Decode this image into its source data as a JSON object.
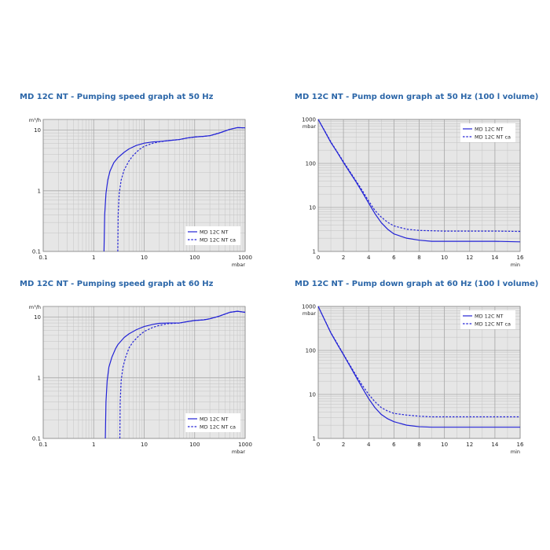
{
  "colors": {
    "line": "#2323d6",
    "plot_bg": "#e6e6e6",
    "grid": "#c4c4c4",
    "title": "#2b66a8"
  },
  "chart_data": [
    {
      "type": "line",
      "title": "MD 12C NT - Pumping speed graph at 50 Hz",
      "xscale": "log",
      "yscale": "log",
      "xlim": [
        0.1,
        1000
      ],
      "ylim": [
        0.1,
        15
      ],
      "xticks": [
        0.1,
        1,
        10,
        100,
        1000
      ],
      "xtick_labels": [
        "0.1",
        "1",
        "10",
        "100",
        "1000"
      ],
      "yticks": [
        0.1,
        1,
        10
      ],
      "ytick_labels": [
        "0.1",
        "1",
        "10"
      ],
      "xlabel": "mbar",
      "ylabel": "m³/h",
      "grid": true,
      "legend_position": "bottom-right",
      "series": [
        {
          "name": "MD 12C NT",
          "style": "solid",
          "x": [
            1.6,
            1.65,
            1.75,
            1.9,
            2.1,
            2.5,
            3,
            4,
            5,
            7,
            10,
            15,
            20,
            30,
            50,
            70,
            100,
            150,
            200,
            300,
            500,
            700,
            1000
          ],
          "y": [
            0.1,
            0.4,
            0.9,
            1.5,
            2.1,
            2.9,
            3.5,
            4.3,
            4.9,
            5.6,
            6.1,
            6.4,
            6.5,
            6.7,
            7.0,
            7.4,
            7.7,
            7.9,
            8.1,
            8.9,
            10.3,
            11.0,
            10.9
          ]
        },
        {
          "name": "MD 12C NT ca",
          "style": "dashed",
          "x": [
            3.0,
            3.05,
            3.2,
            3.5,
            4,
            5,
            6,
            8,
            10,
            15,
            20,
            30,
            50,
            70,
            100,
            150,
            200,
            300,
            500,
            700,
            1000
          ],
          "y": [
            0.1,
            0.4,
            0.9,
            1.5,
            2.2,
            3.1,
            3.8,
            4.8,
            5.4,
            6.1,
            6.4,
            6.7,
            7.0,
            7.4,
            7.7,
            7.9,
            8.1,
            8.9,
            10.3,
            11.0,
            10.9
          ]
        }
      ]
    },
    {
      "type": "line",
      "title": "MD 12C NT - Pump down graph at 50 Hz (100 l volume)",
      "xscale": "linear",
      "yscale": "log",
      "xlim": [
        0,
        16
      ],
      "ylim": [
        1,
        1000
      ],
      "xticks": [
        0,
        2,
        4,
        6,
        8,
        10,
        12,
        14,
        16
      ],
      "xtick_labels": [
        "0",
        "2",
        "4",
        "6",
        "8",
        "10",
        "12",
        "14",
        "16"
      ],
      "yticks": [
        1000,
        100,
        10,
        1
      ],
      "ytick_labels": [
        "1000",
        "100",
        "10",
        "1"
      ],
      "xlabel": "min",
      "ylabel": "mbar",
      "grid": true,
      "legend_position": "top-right",
      "series": [
        {
          "name": "MD 12C NT",
          "style": "solid",
          "x": [
            0,
            0.5,
            1,
            1.5,
            2,
            2.5,
            3,
            3.5,
            4,
            4.5,
            5,
            5.5,
            6,
            7,
            8,
            9,
            10,
            12,
            14,
            16
          ],
          "y": [
            1000,
            550,
            300,
            180,
            105,
            63,
            38,
            22,
            12.5,
            7.2,
            4.5,
            3.2,
            2.5,
            2.0,
            1.8,
            1.7,
            1.7,
            1.7,
            1.7,
            1.65
          ]
        },
        {
          "name": "MD 12C NT ca",
          "style": "dashed",
          "x": [
            0,
            0.5,
            1,
            1.5,
            2,
            2.5,
            3,
            3.5,
            4,
            4.5,
            5,
            5.5,
            6,
            7,
            8,
            9,
            10,
            12,
            14,
            16
          ],
          "y": [
            1000,
            560,
            310,
            185,
            110,
            66,
            40,
            24,
            14,
            8.5,
            6.0,
            4.6,
            3.8,
            3.2,
            3.0,
            2.95,
            2.9,
            2.9,
            2.9,
            2.85
          ]
        }
      ]
    },
    {
      "type": "line",
      "title": "MD 12C NT - Pumping speed graph at 60 Hz",
      "xscale": "log",
      "yscale": "log",
      "xlim": [
        0.1,
        1000
      ],
      "ylim": [
        0.1,
        15
      ],
      "xticks": [
        0.1,
        1,
        10,
        100,
        1000
      ],
      "xtick_labels": [
        "0.1",
        "1",
        "10",
        "100",
        "1000"
      ],
      "yticks": [
        0.1,
        1,
        10
      ],
      "ytick_labels": [
        "0.1",
        "1",
        "10"
      ],
      "xlabel": "mbar",
      "ylabel": "m³/h",
      "grid": true,
      "legend_position": "bottom-right",
      "series": [
        {
          "name": "MD 12C NT",
          "style": "solid",
          "x": [
            1.7,
            1.75,
            1.85,
            2,
            2.3,
            2.7,
            3,
            4,
            5,
            7,
            10,
            15,
            20,
            30,
            50,
            70,
            100,
            150,
            200,
            300,
            500,
            700,
            1000
          ],
          "y": [
            0.1,
            0.4,
            0.9,
            1.5,
            2.2,
            3.0,
            3.5,
            4.6,
            5.3,
            6.2,
            7.0,
            7.6,
            7.9,
            8.0,
            8.0,
            8.4,
            8.8,
            9.0,
            9.4,
            10.3,
            12.0,
            12.5,
            12.0
          ]
        },
        {
          "name": "MD 12C NT ca",
          "style": "dashed",
          "x": [
            3.3,
            3.35,
            3.5,
            3.8,
            4.3,
            5,
            6,
            8,
            10,
            15,
            20,
            30,
            50,
            70,
            100,
            150,
            200,
            300,
            500,
            700,
            1000
          ],
          "y": [
            0.1,
            0.4,
            0.9,
            1.5,
            2.2,
            3.1,
            3.9,
            5.0,
            5.8,
            6.8,
            7.3,
            7.8,
            8.0,
            8.4,
            8.8,
            9.0,
            9.4,
            10.3,
            12.0,
            12.5,
            12.0
          ]
        }
      ]
    },
    {
      "type": "line",
      "title": "MD 12C NT - Pump down graph at 60 Hz (100 l volume)",
      "xscale": "linear",
      "yscale": "log",
      "xlim": [
        0,
        16
      ],
      "ylim": [
        1,
        1000
      ],
      "xticks": [
        0,
        2,
        4,
        6,
        8,
        10,
        12,
        14,
        16
      ],
      "xtick_labels": [
        "0",
        "2",
        "4",
        "6",
        "8",
        "10",
        "12",
        "14",
        "16"
      ],
      "yticks": [
        1000,
        100,
        10,
        1
      ],
      "ytick_labels": [
        "1000",
        "100",
        "10",
        "1"
      ],
      "xlabel": "min",
      "ylabel": "mbar",
      "grid": true,
      "legend_position": "top-right",
      "series": [
        {
          "name": "MD 12C NT",
          "style": "solid",
          "x": [
            0,
            0.5,
            1,
            1.5,
            2,
            2.5,
            3,
            3.5,
            4,
            4.5,
            5,
            5.5,
            6,
            7,
            8,
            9,
            10,
            12,
            14,
            16
          ],
          "y": [
            1000,
            500,
            250,
            140,
            80,
            45,
            25,
            14,
            8.0,
            5.0,
            3.5,
            2.8,
            2.4,
            2.0,
            1.85,
            1.8,
            1.8,
            1.8,
            1.8,
            1.8
          ]
        },
        {
          "name": "MD 12C NT ca",
          "style": "dashed",
          "x": [
            0,
            0.5,
            1,
            1.5,
            2,
            2.5,
            3,
            3.5,
            4,
            4.5,
            5,
            5.5,
            6,
            7,
            8,
            9,
            10,
            12,
            14,
            16
          ],
          "y": [
            1000,
            505,
            255,
            145,
            82,
            47,
            27,
            16,
            10,
            6.8,
            5.0,
            4.2,
            3.7,
            3.4,
            3.2,
            3.1,
            3.1,
            3.1,
            3.1,
            3.1
          ]
        }
      ]
    }
  ]
}
